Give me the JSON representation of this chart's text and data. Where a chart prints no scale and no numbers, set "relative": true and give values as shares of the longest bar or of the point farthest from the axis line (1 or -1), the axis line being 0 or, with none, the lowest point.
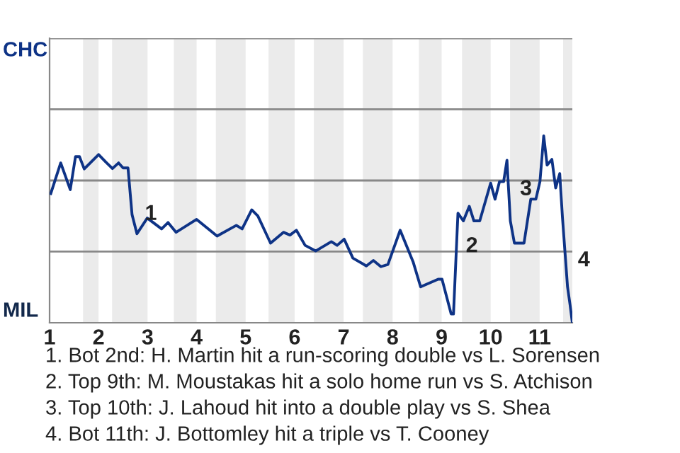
{
  "chart_data": {
    "type": "line",
    "relative": true,
    "x": [
      1.024,
      1.227,
      1.422,
      1.529,
      1.61,
      1.707,
      2,
      2.143,
      2.283,
      2.408,
      2.5,
      2.6,
      2.683,
      2.783,
      2.993,
      3.286,
      3.418,
      3.582,
      4,
      4.418,
      4.811,
      4.929,
      5.125,
      5.25,
      5.509,
      5.772,
      5.906,
      6.036,
      6.214,
      6.429,
      6.75,
      6.868,
      7.011,
      7.189,
      7.464,
      7.607,
      7.761,
      7.904,
      8.154,
      8.418,
      8.571,
      8.929,
      9.008,
      9.194,
      9.242,
      9.333,
      9.444,
      9.564,
      9.658,
      9.778,
      10,
      10.09,
      10.181,
      10.265,
      10.333,
      10.402,
      10.485,
      10.681,
      10.819,
      10.923,
      11.006,
      11.083,
      11.152,
      11.25,
      11.327,
      11.41,
      11.465,
      11.569,
      11.619,
      11.667
    ],
    "series": [
      {
        "color": "#0e3386",
        "values": [
          0.691,
          0.855,
          0.712,
          0.889,
          0.889,
          0.823,
          0.9,
          0.861,
          0.825,
          0.855,
          0.828,
          0.828,
          0.578,
          0.476,
          0.56,
          0.502,
          0.536,
          0.484,
          0.553,
          0.464,
          0.521,
          0.502,
          0.604,
          0.571,
          0.426,
          0.484,
          0.469,
          0.495,
          0.414,
          0.384,
          0.434,
          0.414,
          0.447,
          0.346,
          0.304,
          0.333,
          0.3,
          0.312,
          0.495,
          0.326,
          0.192,
          0.233,
          0.233,
          0.047,
          0.047,
          0.586,
          0.545,
          0.623,
          0.545,
          0.545,
          0.747,
          0.661,
          0.755,
          0.755,
          0.869,
          0.545,
          0.426,
          0.426,
          0.661,
          0.661,
          0.755,
          1,
          0.843,
          0.874,
          0.721,
          0.798,
          0.566,
          0.192,
          0.099,
          0
        ]
      }
    ],
    "xlim": [
      1,
      11.667
    ],
    "xticks": [
      1,
      2,
      3,
      4,
      5,
      6,
      7,
      8,
      9,
      10,
      11
    ],
    "line_style": "solid",
    "marker": "none",
    "ref_lines": [
      {
        "axis": "y",
        "value": 0.381,
        "color": "#888888"
      },
      {
        "axis": "y",
        "value": 0.761,
        "color": "#888888"
      },
      {
        "axis": "y",
        "value": 1.142,
        "color": "#888888"
      },
      {
        "axis": "y",
        "value": 1.522,
        "color": "#888888"
      }
    ],
    "bands": [
      {
        "axis": "x",
        "from": 1.683,
        "to": 2,
        "color": "#ebebeb"
      },
      {
        "axis": "x",
        "from": 2.275,
        "to": 3,
        "color": "#ebebeb"
      },
      {
        "axis": "x",
        "from": 3.536,
        "to": 4,
        "color": "#ebebeb"
      },
      {
        "axis": "x",
        "from": 4.393,
        "to": 5,
        "color": "#ebebeb"
      },
      {
        "axis": "x",
        "from": 5.469,
        "to": 6,
        "color": "#ebebeb"
      },
      {
        "axis": "x",
        "from": 6.393,
        "to": 7,
        "color": "#ebebeb"
      },
      {
        "axis": "x",
        "from": 7.393,
        "to": 8,
        "color": "#ebebeb"
      },
      {
        "axis": "x",
        "from": 8.536,
        "to": 9,
        "color": "#ebebeb"
      },
      {
        "axis": "x",
        "from": 9.417,
        "to": 10,
        "color": "#ebebeb"
      },
      {
        "axis": "x",
        "from": 10.396,
        "to": 11,
        "color": "#ebebeb"
      },
      {
        "axis": "x",
        "from": 11.479,
        "to": 11.667,
        "color": "#ebebeb"
      }
    ],
    "annotations": [
      "CHC",
      "MIL",
      {
        "text": "1",
        "x": 2.783,
        "y": 0.476
      },
      {
        "text": "2",
        "x": 9.333,
        "y": 0.304
      },
      {
        "text": "3",
        "x": 10.438,
        "y": 0.609
      },
      {
        "text": "4",
        "x": 11.619,
        "y": 0.228
      },
      "1. Bot 2nd: H. Martin hit a run-scoring double vs L. Sorensen",
      "2. Top 9th: M. Moustakas hit a solo home run vs S. Atchison",
      "3. Top 10th: J. Lahoud hit into a double play vs S. Shea",
      "4. Bot 11th: J. Bottomley hit a triple vs T. Cooney"
    ]
  }
}
